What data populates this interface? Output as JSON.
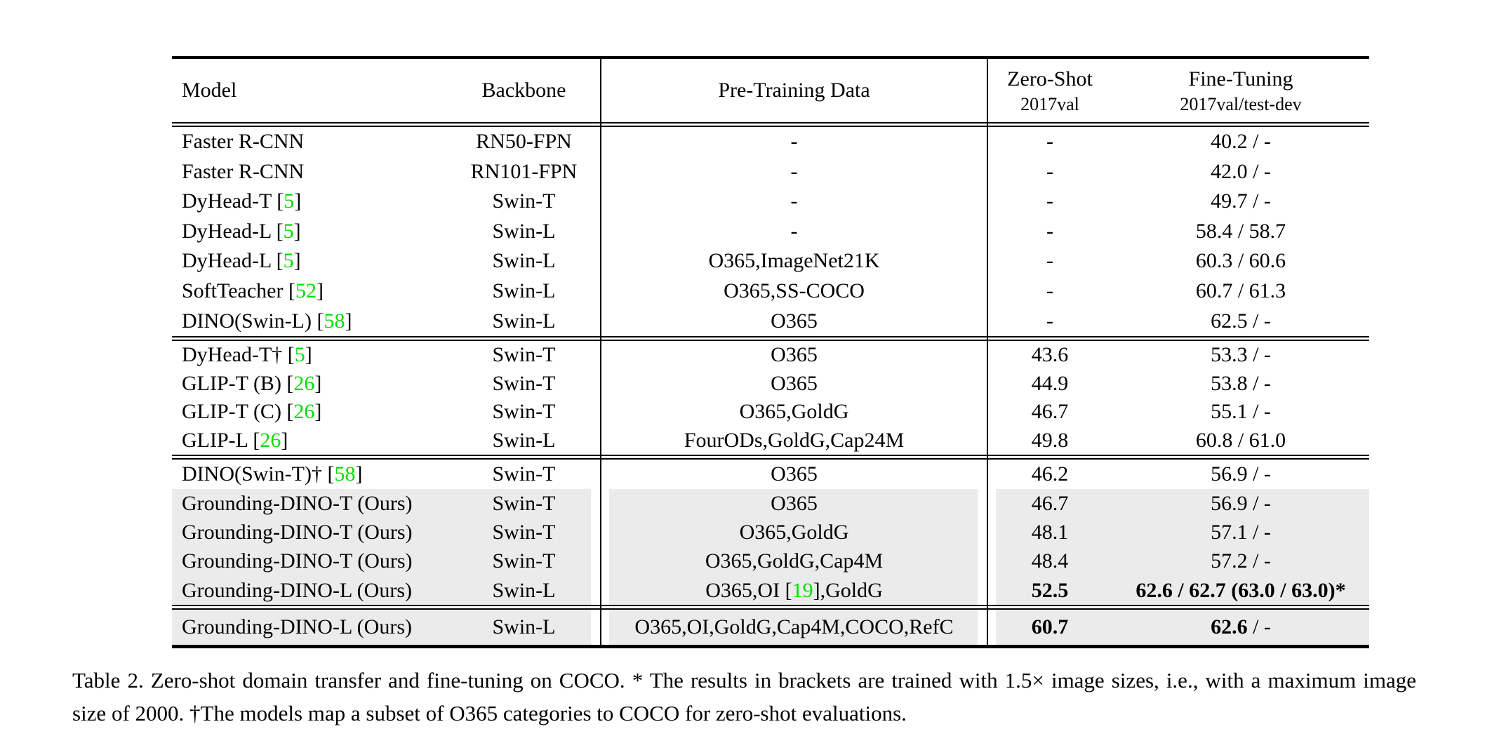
{
  "colors": {
    "citation_green": "#00dd00",
    "row_highlight_gray": "#ebebeb",
    "rule_black": "#000000",
    "background": "#ffffff"
  },
  "table": {
    "header": {
      "model": "Model",
      "backbone": "Backbone",
      "pretrain": "Pre-Training Data",
      "zeroshot_title": "Zero-Shot",
      "zeroshot_sub": "2017val",
      "finetune_title": "Fine-Tuning",
      "finetune_sub": "2017val/test-dev"
    },
    "sections": [
      {
        "rows": [
          {
            "model": [
              {
                "t": "Faster R-CNN"
              }
            ],
            "backbone": "RN50-FPN",
            "pretrain": [
              {
                "t": "-"
              }
            ],
            "zeroshot": [
              {
                "t": "-"
              }
            ],
            "finetune": [
              {
                "t": "40.2 / -"
              }
            ],
            "gray": false
          },
          {
            "model": [
              {
                "t": "Faster R-CNN"
              }
            ],
            "backbone": "RN101-FPN",
            "pretrain": [
              {
                "t": "-"
              }
            ],
            "zeroshot": [
              {
                "t": "-"
              }
            ],
            "finetune": [
              {
                "t": "42.0 / -"
              }
            ],
            "gray": false
          },
          {
            "model": [
              {
                "t": "DyHead-T ["
              },
              {
                "t": "5",
                "c": 1
              },
              {
                "t": "]"
              }
            ],
            "backbone": "Swin-T",
            "pretrain": [
              {
                "t": "-"
              }
            ],
            "zeroshot": [
              {
                "t": "-"
              }
            ],
            "finetune": [
              {
                "t": "49.7 / -"
              }
            ],
            "gray": false
          },
          {
            "model": [
              {
                "t": "DyHead-L ["
              },
              {
                "t": "5",
                "c": 1
              },
              {
                "t": "]"
              }
            ],
            "backbone": "Swin-L",
            "pretrain": [
              {
                "t": "-"
              }
            ],
            "zeroshot": [
              {
                "t": "-"
              }
            ],
            "finetune": [
              {
                "t": "58.4 / 58.7"
              }
            ],
            "gray": false
          },
          {
            "model": [
              {
                "t": "DyHead-L ["
              },
              {
                "t": "5",
                "c": 1
              },
              {
                "t": "]"
              }
            ],
            "backbone": "Swin-L",
            "pretrain": [
              {
                "t": "O365,ImageNet21K"
              }
            ],
            "zeroshot": [
              {
                "t": "-"
              }
            ],
            "finetune": [
              {
                "t": "60.3 / 60.6"
              }
            ],
            "gray": false
          },
          {
            "model": [
              {
                "t": "SoftTeacher ["
              },
              {
                "t": "52",
                "c": 1
              },
              {
                "t": "]"
              }
            ],
            "backbone": "Swin-L",
            "pretrain": [
              {
                "t": "O365,SS-COCO"
              }
            ],
            "zeroshot": [
              {
                "t": "-"
              }
            ],
            "finetune": [
              {
                "t": "60.7 / 61.3"
              }
            ],
            "gray": false
          },
          {
            "model": [
              {
                "t": "DINO(Swin-L) ["
              },
              {
                "t": "58",
                "c": 1
              },
              {
                "t": "]"
              }
            ],
            "backbone": "Swin-L",
            "pretrain": [
              {
                "t": "O365"
              }
            ],
            "zeroshot": [
              {
                "t": "-"
              }
            ],
            "finetune": [
              {
                "t": "62.5 / -"
              }
            ],
            "gray": false
          }
        ]
      },
      {
        "rows": [
          {
            "model": [
              {
                "t": "DyHead-T† ["
              },
              {
                "t": "5",
                "c": 1
              },
              {
                "t": "]"
              }
            ],
            "backbone": "Swin-T",
            "pretrain": [
              {
                "t": "O365"
              }
            ],
            "zeroshot": [
              {
                "t": "43.6"
              }
            ],
            "finetune": [
              {
                "t": "53.3 / -"
              }
            ],
            "gray": false
          },
          {
            "model": [
              {
                "t": "GLIP-T (B) ["
              },
              {
                "t": "26",
                "c": 1
              },
              {
                "t": "]"
              }
            ],
            "backbone": "Swin-T",
            "pretrain": [
              {
                "t": "O365"
              }
            ],
            "zeroshot": [
              {
                "t": "44.9"
              }
            ],
            "finetune": [
              {
                "t": "53.8 / -"
              }
            ],
            "gray": false
          },
          {
            "model": [
              {
                "t": "GLIP-T (C) ["
              },
              {
                "t": "26",
                "c": 1
              },
              {
                "t": "]"
              }
            ],
            "backbone": "Swin-T",
            "pretrain": [
              {
                "t": "O365,GoldG"
              }
            ],
            "zeroshot": [
              {
                "t": "46.7"
              }
            ],
            "finetune": [
              {
                "t": "55.1 / -"
              }
            ],
            "gray": false
          },
          {
            "model": [
              {
                "t": "GLIP-L ["
              },
              {
                "t": "26",
                "c": 1
              },
              {
                "t": "]"
              }
            ],
            "backbone": "Swin-L",
            "pretrain": [
              {
                "t": "FourODs,GoldG,Cap24M"
              }
            ],
            "zeroshot": [
              {
                "t": "49.8"
              }
            ],
            "finetune": [
              {
                "t": "60.8 / 61.0"
              }
            ],
            "gray": false
          }
        ]
      },
      {
        "rows": [
          {
            "model": [
              {
                "t": "DINO(Swin-T)† ["
              },
              {
                "t": "58",
                "c": 1
              },
              {
                "t": "]"
              }
            ],
            "backbone": "Swin-T",
            "pretrain": [
              {
                "t": "O365"
              }
            ],
            "zeroshot": [
              {
                "t": "46.2"
              }
            ],
            "finetune": [
              {
                "t": "56.9 / -"
              }
            ],
            "gray": false
          },
          {
            "model": [
              {
                "t": "Grounding-DINO-T (Ours)"
              }
            ],
            "backbone": "Swin-T",
            "pretrain": [
              {
                "t": "O365"
              }
            ],
            "zeroshot": [
              {
                "t": "46.7"
              }
            ],
            "finetune": [
              {
                "t": "56.9 / -"
              }
            ],
            "gray": true
          },
          {
            "model": [
              {
                "t": "Grounding-DINO-T (Ours)"
              }
            ],
            "backbone": "Swin-T",
            "pretrain": [
              {
                "t": "O365,GoldG"
              }
            ],
            "zeroshot": [
              {
                "t": "48.1"
              }
            ],
            "finetune": [
              {
                "t": "57.1 / -"
              }
            ],
            "gray": true
          },
          {
            "model": [
              {
                "t": "Grounding-DINO-T (Ours)"
              }
            ],
            "backbone": "Swin-T",
            "pretrain": [
              {
                "t": "O365,GoldG,Cap4M"
              }
            ],
            "zeroshot": [
              {
                "t": "48.4"
              }
            ],
            "finetune": [
              {
                "t": "57.2 / -"
              }
            ],
            "gray": true
          },
          {
            "model": [
              {
                "t": "Grounding-DINO-L (Ours)"
              }
            ],
            "backbone": "Swin-L",
            "pretrain": [
              {
                "t": "O365,OI ["
              },
              {
                "t": "19",
                "c": 1
              },
              {
                "t": "],GoldG"
              }
            ],
            "zeroshot": [
              {
                "t": "52.5",
                "b": 1
              }
            ],
            "finetune": [
              {
                "t": "62.6 / 62.7 (63.0 / 63.0)*",
                "b": 1
              }
            ],
            "gray": true
          }
        ]
      },
      {
        "rows": [
          {
            "model": [
              {
                "t": "Grounding-DINO-L (Ours)"
              }
            ],
            "backbone": "Swin-L",
            "pretrain": [
              {
                "t": "O365,OI,GoldG,Cap4M,COCO,RefC"
              }
            ],
            "zeroshot": [
              {
                "t": "60.7",
                "b": 1
              }
            ],
            "finetune": [
              {
                "t": "62.6",
                "b": 1
              },
              {
                "t": " / -"
              }
            ],
            "gray": true
          }
        ]
      }
    ]
  },
  "caption": "Table 2. Zero-shot domain transfer and fine-tuning on COCO. * The results in brackets are trained with 1.5× image sizes, i.e., with a maximum image size of 2000. †The models map a subset of O365 categories to COCO for zero-shot evaluations."
}
